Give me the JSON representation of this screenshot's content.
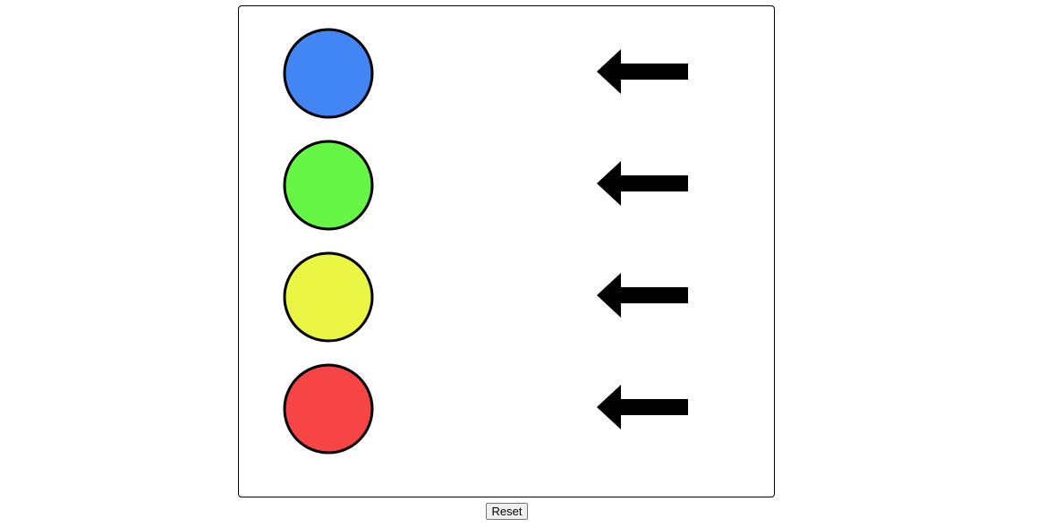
{
  "game": {
    "circles": [
      {
        "color_name": "blue",
        "fill": "#4285F4"
      },
      {
        "color_name": "green",
        "fill": "#66F646"
      },
      {
        "color_name": "yellow",
        "fill": "#EBF644"
      },
      {
        "color_name": "red",
        "fill": "#F74444"
      }
    ],
    "arrows": [
      {
        "direction": "left",
        "icon": "arrow-left-icon"
      },
      {
        "direction": "left",
        "icon": "arrow-left-icon"
      },
      {
        "direction": "left",
        "icon": "arrow-left-icon"
      },
      {
        "direction": "left",
        "icon": "arrow-left-icon"
      }
    ],
    "outline_color": "#000000"
  },
  "controls": {
    "reset_label": "Reset"
  }
}
